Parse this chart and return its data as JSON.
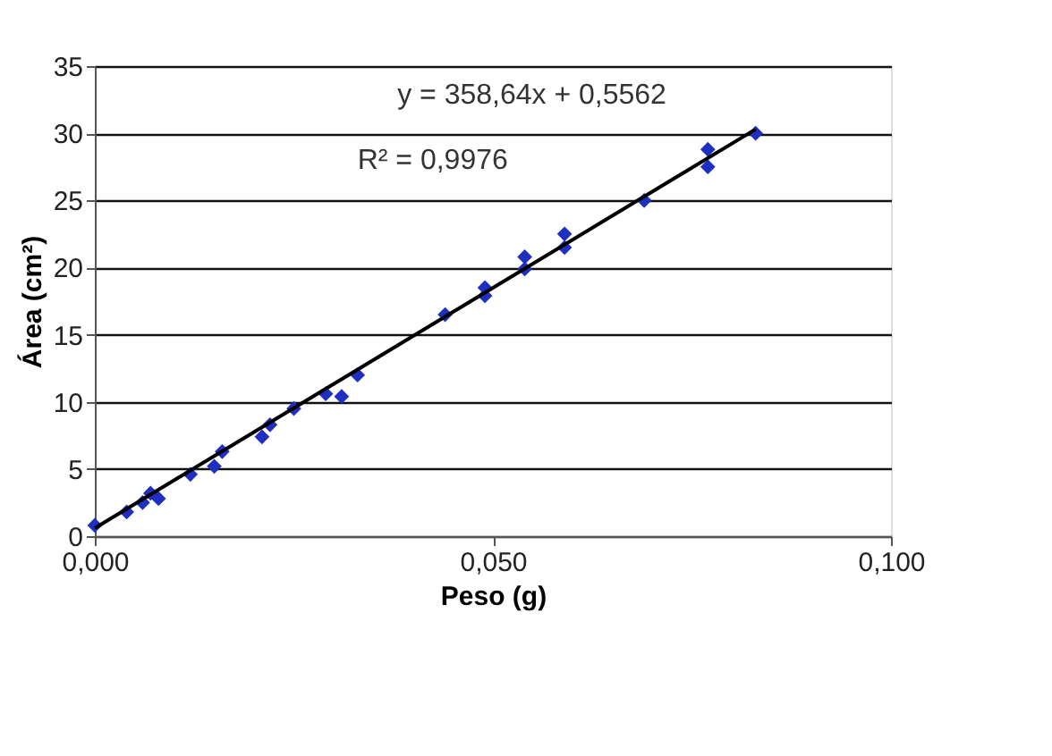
{
  "chart_data": {
    "type": "scatter",
    "xlabel": "Peso (g)",
    "ylabel": "Área (cm²)",
    "annotations": [
      "y = 358,64x + 0,5562",
      "R² = 0,9976"
    ],
    "xlim": [
      0,
      0.1
    ],
    "xticks": [
      {
        "value": 0,
        "label": "0,000"
      },
      {
        "value": 0.05,
        "label": "0,050"
      },
      {
        "value": 0.1,
        "label": "0,100"
      }
    ],
    "ylim": [
      0,
      35
    ],
    "yticks": [
      0,
      5,
      10,
      15,
      20,
      25,
      30,
      35
    ],
    "grid": "y",
    "legend": false,
    "series": [
      {
        "color": "#1f2fbf",
        "marker": "diamond",
        "x": [
          0.0,
          0.004,
          0.006,
          0.007,
          0.008,
          0.012,
          0.015,
          0.016,
          0.021,
          0.022,
          0.025,
          0.029,
          0.031,
          0.033,
          0.044,
          0.049,
          0.049,
          0.054,
          0.054,
          0.059,
          0.059,
          0.069,
          0.077,
          0.077,
          0.083
        ],
        "values": [
          0.8,
          1.8,
          2.5,
          3.2,
          2.8,
          4.6,
          5.2,
          6.3,
          7.4,
          8.3,
          9.5,
          10.6,
          10.4,
          12.0,
          16.5,
          17.9,
          18.5,
          19.9,
          20.8,
          21.5,
          22.5,
          25.0,
          27.5,
          28.8,
          30.0
        ]
      },
      {
        "type": "line",
        "color": "#000000",
        "line_style": "solid",
        "marker": "none",
        "x": [
          0,
          0.083
        ],
        "values": [
          0.6,
          30.3
        ]
      }
    ]
  }
}
